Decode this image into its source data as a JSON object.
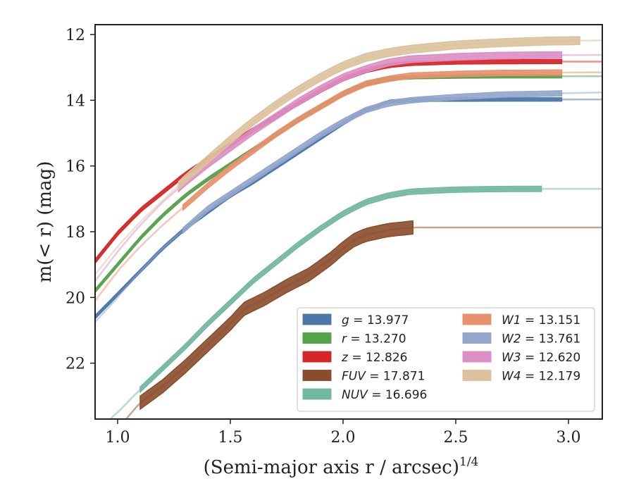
{
  "chart_data": {
    "type": "line",
    "title": "",
    "xlabel": "(Semi-major axis r / arcsec)",
    "xlabel_exponent": "1/4",
    "ylabel": "m(< r) (mag)",
    "xlim": [
      0.9,
      3.15
    ],
    "ylim": [
      23.7,
      11.7
    ],
    "y_inverted": true,
    "grid": false,
    "legend_placement": "lower-right",
    "x_ticks": [
      "1.0",
      "1.5",
      "2.0",
      "2.5",
      "3.0"
    ],
    "y_ticks": [
      "12",
      "14",
      "16",
      "18",
      "20",
      "22"
    ],
    "series": [
      {
        "name": "g = 13.977",
        "label_var": "g",
        "label_val": "= 13.977",
        "color": "#4c78a8",
        "band_halfwidth": 0.05,
        "x_band_end": 2.97,
        "x": [
          0.9,
          1.0,
          1.1,
          1.2,
          1.3,
          1.4,
          1.5,
          1.6,
          1.7,
          1.8,
          1.9,
          2.0,
          2.1,
          2.2,
          2.3,
          2.5,
          2.7,
          2.9,
          3.15
        ],
        "y": [
          20.6,
          19.9,
          19.2,
          18.5,
          17.9,
          17.4,
          16.9,
          16.5,
          16.05,
          15.6,
          15.15,
          14.7,
          14.3,
          14.05,
          13.99,
          13.98,
          13.977,
          13.977,
          13.977
        ]
      },
      {
        "name": "r = 13.270",
        "label_var": "r",
        "label_val": "= 13.270",
        "color": "#54a24b",
        "band_halfwidth": 0.05,
        "x_band_end": 2.97,
        "x": [
          0.9,
          1.0,
          1.1,
          1.2,
          1.3,
          1.4,
          1.5,
          1.6,
          1.7,
          1.8,
          1.9,
          2.0,
          2.1,
          2.2,
          2.3,
          2.5,
          2.7,
          2.9,
          3.15
        ],
        "y": [
          19.8,
          19.0,
          18.2,
          17.5,
          16.9,
          16.4,
          15.95,
          15.5,
          15.05,
          14.6,
          14.2,
          13.8,
          13.5,
          13.35,
          13.3,
          13.28,
          13.27,
          13.27,
          13.27
        ]
      },
      {
        "name": "z = 12.826",
        "label_var": "z",
        "label_val": "= 12.826",
        "color": "#d62728",
        "band_halfwidth": 0.06,
        "x_band_end": 2.97,
        "x": [
          0.9,
          1.0,
          1.1,
          1.2,
          1.3,
          1.4,
          1.5,
          1.6,
          1.7,
          1.8,
          1.9,
          2.0,
          2.1,
          2.2,
          2.3,
          2.5,
          2.7,
          2.9,
          3.15
        ],
        "y": [
          18.9,
          18.05,
          17.35,
          16.8,
          16.25,
          15.8,
          15.35,
          14.9,
          14.5,
          14.1,
          13.7,
          13.35,
          13.1,
          12.95,
          12.88,
          12.84,
          12.83,
          12.826,
          12.826
        ]
      },
      {
        "name": "FUV = 17.871",
        "label_var": "FUV",
        "label_val": "= 17.871",
        "color": "#8b4c2b",
        "band_halfwidth": 0.2,
        "x_band_start": 1.1,
        "x_band_end": 2.31,
        "x": [
          0.9,
          1.0,
          1.1,
          1.2,
          1.3,
          1.4,
          1.5,
          1.56,
          1.65,
          1.75,
          1.85,
          1.95,
          2.0,
          2.05,
          2.1,
          2.2,
          2.31,
          3.15
        ],
        "y": [
          24.5,
          24.0,
          23.2,
          22.7,
          22.1,
          21.45,
          20.8,
          20.35,
          20.05,
          19.65,
          19.3,
          18.8,
          18.5,
          18.25,
          18.1,
          17.95,
          17.871,
          17.871
        ]
      },
      {
        "name": "NUV = 16.696",
        "label_var": "NUV",
        "label_val": "= 16.696",
        "color": "#72b7a1",
        "band_halfwidth": 0.08,
        "x_band_start": 1.1,
        "x_band_end": 2.88,
        "x": [
          0.9,
          1.0,
          1.1,
          1.2,
          1.3,
          1.4,
          1.5,
          1.6,
          1.7,
          1.8,
          1.9,
          2.0,
          2.1,
          2.2,
          2.3,
          2.5,
          2.7,
          2.9,
          3.15
        ],
        "y": [
          24.1,
          23.5,
          22.8,
          22.15,
          21.5,
          20.8,
          20.15,
          19.5,
          18.95,
          18.4,
          17.9,
          17.45,
          17.1,
          16.9,
          16.78,
          16.72,
          16.7,
          16.696,
          16.696
        ]
      },
      {
        "name": "W1 = 13.151",
        "label_var": "W1",
        "label_val": "= 13.151",
        "color": "#e8916c",
        "band_halfwidth": 0.08,
        "x_band_start": 1.29,
        "x_band_end": 2.97,
        "x": [
          0.9,
          1.0,
          1.1,
          1.2,
          1.3,
          1.4,
          1.5,
          1.6,
          1.7,
          1.8,
          1.9,
          2.0,
          2.1,
          2.2,
          2.3,
          2.5,
          2.7,
          2.9,
          3.15
        ],
        "y": [
          20.1,
          19.2,
          18.45,
          17.8,
          17.2,
          16.6,
          16.05,
          15.55,
          15.05,
          14.6,
          14.2,
          13.8,
          13.5,
          13.35,
          13.25,
          13.2,
          13.17,
          13.16,
          13.151
        ]
      },
      {
        "name": "W2 = 13.761",
        "label_var": "W2",
        "label_val": "= 13.761",
        "color": "#94a6cc",
        "band_halfwidth": 0.08,
        "x_band_start": 1.29,
        "x_band_end": 2.97,
        "x": [
          0.9,
          1.0,
          1.1,
          1.2,
          1.3,
          1.4,
          1.5,
          1.6,
          1.7,
          1.8,
          1.9,
          2.0,
          2.1,
          2.2,
          2.3,
          2.5,
          2.7,
          2.9,
          3.15
        ],
        "y": [
          20.75,
          20.0,
          19.2,
          18.5,
          17.9,
          17.3,
          16.85,
          16.4,
          15.95,
          15.5,
          15.05,
          14.65,
          14.3,
          14.1,
          14.0,
          13.9,
          13.83,
          13.8,
          13.761
        ]
      },
      {
        "name": "W3 = 12.620",
        "label_var": "W3",
        "label_val": "= 12.620",
        "color": "#dc8fc4",
        "band_halfwidth": 0.1,
        "x_band_start": 1.27,
        "x_band_end": 2.97,
        "x": [
          0.9,
          1.0,
          1.1,
          1.2,
          1.3,
          1.4,
          1.5,
          1.6,
          1.7,
          1.8,
          1.9,
          2.0,
          2.1,
          2.2,
          2.3,
          2.5,
          2.7,
          2.9,
          3.15
        ],
        "y": [
          19.5,
          18.6,
          17.8,
          17.1,
          16.5,
          15.95,
          15.45,
          14.95,
          14.5,
          14.05,
          13.65,
          13.3,
          13.05,
          12.85,
          12.75,
          12.68,
          12.64,
          12.63,
          12.62
        ]
      },
      {
        "name": "W4 = 12.179",
        "label_var": "W4",
        "label_val": "= 12.179",
        "color": "#dcc29c",
        "band_halfwidth": 0.12,
        "x_band_start": 1.27,
        "x_band_end": 3.05,
        "x": [
          0.9,
          1.0,
          1.1,
          1.2,
          1.3,
          1.4,
          1.5,
          1.6,
          1.7,
          1.8,
          1.9,
          2.0,
          2.1,
          2.2,
          2.3,
          2.5,
          2.7,
          2.9,
          3.15
        ],
        "y": [
          19.3,
          18.45,
          17.7,
          17.05,
          16.4,
          15.8,
          15.2,
          14.65,
          14.15,
          13.7,
          13.3,
          12.95,
          12.7,
          12.55,
          12.45,
          12.32,
          12.25,
          12.2,
          12.179
        ]
      }
    ]
  }
}
